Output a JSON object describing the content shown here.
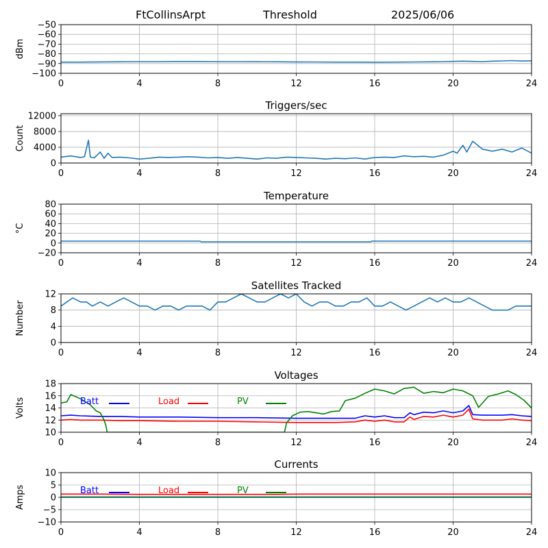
{
  "header": {
    "station": "FtCollinsArpt",
    "mode": "Threshold",
    "date": "2025/06/06"
  },
  "chart_data": [
    {
      "type": "line",
      "title": "",
      "ylabel": "dBm",
      "xlim": [
        0,
        24
      ],
      "ylim": [
        -100,
        -50
      ],
      "xticks": [
        0,
        4,
        8,
        12,
        16,
        20,
        24
      ],
      "yticks": [
        -100,
        -90,
        -80,
        -70,
        -60,
        -50
      ],
      "grid": true,
      "series": [
        {
          "color": "#1f77b4",
          "x": [
            0,
            1,
            2,
            3,
            4,
            5,
            6,
            7,
            8,
            9,
            10,
            11,
            12,
            13,
            14,
            15,
            16,
            17,
            18,
            19,
            19.5,
            20,
            20.5,
            21,
            21.5,
            22,
            22.5,
            23,
            23.5,
            24
          ],
          "y": [
            -88.5,
            -88.5,
            -88.3,
            -88.2,
            -88.0,
            -88.0,
            -87.9,
            -87.9,
            -88.0,
            -88.0,
            -88.1,
            -88.2,
            -88.3,
            -88.4,
            -88.5,
            -88.5,
            -88.6,
            -88.5,
            -88.4,
            -88.2,
            -88.0,
            -87.8,
            -87.5,
            -87.8,
            -88.0,
            -87.5,
            -87.3,
            -87.0,
            -87.4,
            -87.2
          ]
        }
      ]
    },
    {
      "type": "line",
      "title": "Triggers/sec",
      "ylabel": "Count",
      "xlim": [
        0,
        24
      ],
      "ylim": [
        0,
        12500
      ],
      "xticks": [
        0,
        4,
        8,
        12,
        16,
        20,
        24
      ],
      "yticks": [
        0,
        4000,
        8000,
        12000
      ],
      "grid": true,
      "series": [
        {
          "color": "#1f77b4",
          "x": [
            0,
            0.5,
            1,
            1.2,
            1.4,
            1.5,
            1.7,
            2,
            2.2,
            2.4,
            2.6,
            3,
            3.5,
            4,
            4.5,
            5,
            5.5,
            6,
            6.5,
            7,
            7.5,
            8,
            8.5,
            9,
            9.5,
            10,
            10.5,
            11,
            11.5,
            12,
            12.5,
            13,
            13.5,
            14,
            14.5,
            15,
            15.5,
            16,
            16.5,
            17,
            17.5,
            18,
            18.5,
            19,
            19.5,
            20,
            20.2,
            20.5,
            20.7,
            21,
            21.5,
            22,
            22.5,
            23,
            23.5,
            24
          ],
          "y": [
            1500,
            1800,
            1400,
            1600,
            5800,
            1500,
            1300,
            2800,
            1200,
            2500,
            1400,
            1500,
            1300,
            1000,
            1200,
            1500,
            1400,
            1500,
            1600,
            1500,
            1300,
            1400,
            1200,
            1400,
            1200,
            1000,
            1300,
            1200,
            1500,
            1400,
            1300,
            1200,
            1000,
            1200,
            1100,
            1300,
            1000,
            1400,
            1500,
            1400,
            1800,
            1600,
            1700,
            1500,
            2000,
            3000,
            2500,
            4500,
            2800,
            5500,
            3500,
            3000,
            3500,
            2800,
            3800,
            2500
          ]
        }
      ]
    },
    {
      "type": "line",
      "title": "Temperature",
      "ylabel": "°C",
      "xlim": [
        0,
        24
      ],
      "ylim": [
        -20,
        80
      ],
      "xticks": [
        0,
        4,
        8,
        12,
        16,
        20,
        24
      ],
      "yticks": [
        -20,
        0,
        20,
        40,
        60,
        80
      ],
      "grid": true,
      "series": [
        {
          "color": "#1f77b4",
          "x": [
            0,
            7.1,
            7.15,
            15.8,
            15.85,
            24
          ],
          "y": [
            4.0,
            4.0,
            2.5,
            2.5,
            4.0,
            4.0
          ]
        }
      ]
    },
    {
      "type": "line",
      "title": "Satellites Tracked",
      "ylabel": "Number",
      "xlim": [
        0,
        24
      ],
      "ylim": [
        0,
        12
      ],
      "xticks": [
        0,
        4,
        8,
        12,
        16,
        20,
        24
      ],
      "yticks": [
        0,
        4,
        8,
        12
      ],
      "grid": true,
      "series": [
        {
          "color": "#1f77b4",
          "x": [
            0,
            0.3,
            0.6,
            1.0,
            1.3,
            1.6,
            2.0,
            2.4,
            2.8,
            3.2,
            3.6,
            4.0,
            4.4,
            4.8,
            5.2,
            5.6,
            6.0,
            6.4,
            6.8,
            7.2,
            7.6,
            8.0,
            8.4,
            8.8,
            9.2,
            9.6,
            10.0,
            10.4,
            10.8,
            11.2,
            11.6,
            12.0,
            12.4,
            12.8,
            13.2,
            13.6,
            14.0,
            14.4,
            14.8,
            15.2,
            15.6,
            16.0,
            16.4,
            16.8,
            17.2,
            17.6,
            18.0,
            18.4,
            18.8,
            19.2,
            19.6,
            20.0,
            20.4,
            20.8,
            21.2,
            21.6,
            22.0,
            22.4,
            22.8,
            23.2,
            23.6,
            24.0
          ],
          "y": [
            9,
            10,
            11,
            10,
            10,
            9,
            10,
            9,
            10,
            11,
            10,
            9,
            9,
            8,
            9,
            9,
            8,
            9,
            9,
            9,
            8,
            10,
            10,
            11,
            12,
            11,
            10,
            10,
            11,
            12,
            11,
            12,
            10,
            9,
            10,
            10,
            9,
            9,
            10,
            10,
            11,
            9,
            9,
            10,
            9,
            8,
            9,
            10,
            11,
            10,
            11,
            10,
            10,
            11,
            10,
            9,
            8,
            8,
            8,
            9,
            9,
            9
          ]
        }
      ]
    },
    {
      "type": "line",
      "title": "Voltages",
      "ylabel": "Volts",
      "xlim": [
        0,
        24
      ],
      "ylim": [
        10,
        18
      ],
      "xticks": [
        0,
        4,
        8,
        12,
        16,
        20,
        24
      ],
      "yticks": [
        10,
        12,
        14,
        16,
        18
      ],
      "grid": true,
      "legend": [
        "Batt",
        "Load",
        "PV"
      ],
      "series": [
        {
          "name": "Batt",
          "color": "#0000ff",
          "x": [
            0,
            0.5,
            1,
            2,
            3,
            4,
            6,
            8,
            10,
            12,
            14,
            15,
            15.5,
            16,
            16.5,
            17,
            17.5,
            17.8,
            18,
            18.5,
            19,
            19.5,
            20,
            20.5,
            20.8,
            21.0,
            21.5,
            22,
            22.5,
            23,
            23.5,
            24
          ],
          "y": [
            12.7,
            12.8,
            12.7,
            12.6,
            12.6,
            12.5,
            12.5,
            12.4,
            12.4,
            12.3,
            12.3,
            12.3,
            12.7,
            12.5,
            12.7,
            12.4,
            12.4,
            13.2,
            12.9,
            13.3,
            13.2,
            13.5,
            13.2,
            13.5,
            14.4,
            12.9,
            12.8,
            12.8,
            12.8,
            12.9,
            12.7,
            12.6
          ]
        },
        {
          "name": "Load",
          "color": "#ff0000",
          "x": [
            0,
            0.5,
            1,
            2,
            3,
            4,
            6,
            8,
            10,
            12,
            14,
            15,
            15.5,
            16,
            16.5,
            17,
            17.5,
            17.8,
            18,
            18.5,
            19,
            19.5,
            20,
            20.5,
            20.8,
            21.0,
            21.5,
            22,
            22.5,
            23,
            23.5,
            24
          ],
          "y": [
            12.0,
            12.1,
            12.0,
            12.0,
            11.9,
            11.9,
            11.8,
            11.8,
            11.7,
            11.6,
            11.6,
            11.7,
            12.0,
            11.8,
            12.0,
            11.7,
            11.7,
            12.5,
            12.1,
            12.6,
            12.5,
            12.8,
            12.5,
            12.8,
            13.8,
            12.2,
            12.0,
            12.0,
            12.0,
            12.2,
            12.0,
            11.9
          ]
        },
        {
          "name": "PV",
          "color": "#008000",
          "x": [
            0,
            0.3,
            0.5,
            1.0,
            1.5,
            1.8,
            2.0,
            2.2,
            2.3,
            2.35,
            11.4,
            11.5,
            11.8,
            12.2,
            12.6,
            13.0,
            13.4,
            13.8,
            14.2,
            14.5,
            15.0,
            15.5,
            16.0,
            16.5,
            17.0,
            17.5,
            18.0,
            18.5,
            19.0,
            19.5,
            20.0,
            20.5,
            21.0,
            21.3,
            21.8,
            22.3,
            22.8,
            23.2,
            23.6,
            24.0
          ],
          "y": [
            14.8,
            15.0,
            16.2,
            15.5,
            14.5,
            13.5,
            13.2,
            12.0,
            11.0,
            10.0,
            10.0,
            11.5,
            12.7,
            13.3,
            13.4,
            13.2,
            13.0,
            13.4,
            13.5,
            15.2,
            15.6,
            16.4,
            17.1,
            16.8,
            16.3,
            17.2,
            17.4,
            16.4,
            16.7,
            16.5,
            17.1,
            16.8,
            16.0,
            14.1,
            15.9,
            16.3,
            16.8,
            16.2,
            15.3,
            14.0
          ]
        }
      ]
    },
    {
      "type": "line",
      "title": "Currents",
      "ylabel": "Amps",
      "xlim": [
        0,
        24
      ],
      "ylim": [
        -10,
        10
      ],
      "xticks": [
        0,
        4,
        8,
        12,
        16,
        20,
        24
      ],
      "yticks": [
        -10,
        -5,
        0,
        5,
        10
      ],
      "grid": true,
      "legend": [
        "Batt",
        "Load",
        "PV"
      ],
      "series": [
        {
          "name": "Batt",
          "color": "#0000ff",
          "x": [
            0,
            24
          ],
          "y": [
            0.1,
            0.1
          ]
        },
        {
          "name": "Load",
          "color": "#ff0000",
          "x": [
            0,
            2,
            4,
            8,
            11,
            12,
            14,
            16,
            18,
            20,
            22,
            24
          ],
          "y": [
            1.3,
            1.3,
            1.2,
            1.2,
            1.2,
            1.3,
            1.3,
            1.3,
            1.3,
            1.3,
            1.3,
            1.3
          ]
        },
        {
          "name": "PV",
          "color": "#008000",
          "x": [
            0,
            24
          ],
          "y": [
            0.0,
            0.0
          ]
        }
      ]
    }
  ]
}
